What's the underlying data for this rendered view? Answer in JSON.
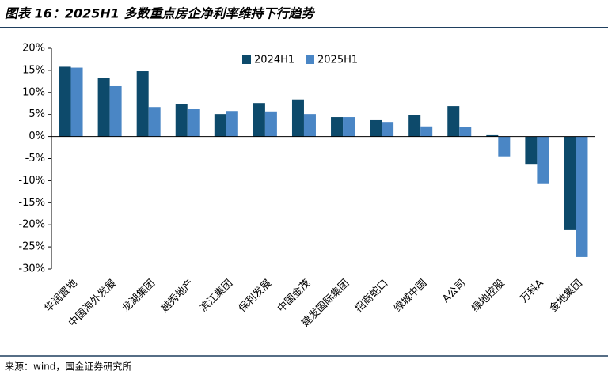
{
  "title": "图表 16：2025H1 多数重点房企净利率维持下行趋势",
  "source": "来源：wind，国金证券研究所",
  "chart_data": {
    "type": "bar",
    "categories": [
      "华润置地",
      "中国海外发展",
      "龙湖集团",
      "越秀地产",
      "滨江集团",
      "保利发展",
      "中国金茂",
      "建发国际集团",
      "招商蛇口",
      "绿城中国",
      "A公司",
      "绿地控股",
      "万科A",
      "金地集团"
    ],
    "series": [
      {
        "name": "2024H1",
        "color": "#0d4a6b",
        "values": [
          15.8,
          13.2,
          14.8,
          7.3,
          5.1,
          7.6,
          8.4,
          4.4,
          3.7,
          4.8,
          6.9,
          0.3,
          -6.2,
          -21.2
        ]
      },
      {
        "name": "2025H1",
        "color": "#4a86c5",
        "values": [
          15.6,
          11.4,
          6.7,
          6.2,
          5.8,
          5.7,
          5.1,
          4.4,
          3.3,
          2.3,
          2.1,
          -4.5,
          -10.6,
          -27.3
        ]
      }
    ],
    "ylim": [
      -30,
      20
    ],
    "yticks": [
      {
        "value": -30,
        "label": "-30%"
      },
      {
        "value": -25,
        "label": "-25%"
      },
      {
        "value": -20,
        "label": "-20%"
      },
      {
        "value": -15,
        "label": "-15%"
      },
      {
        "value": -10,
        "label": "-10%"
      },
      {
        "value": -5,
        "label": "-5%"
      },
      {
        "value": 0,
        "label": "0%"
      },
      {
        "value": 5,
        "label": "5%"
      },
      {
        "value": 10,
        "label": "10%"
      },
      {
        "value": 15,
        "label": "15%"
      },
      {
        "value": 20,
        "label": "20%"
      }
    ],
    "legend": "top"
  }
}
